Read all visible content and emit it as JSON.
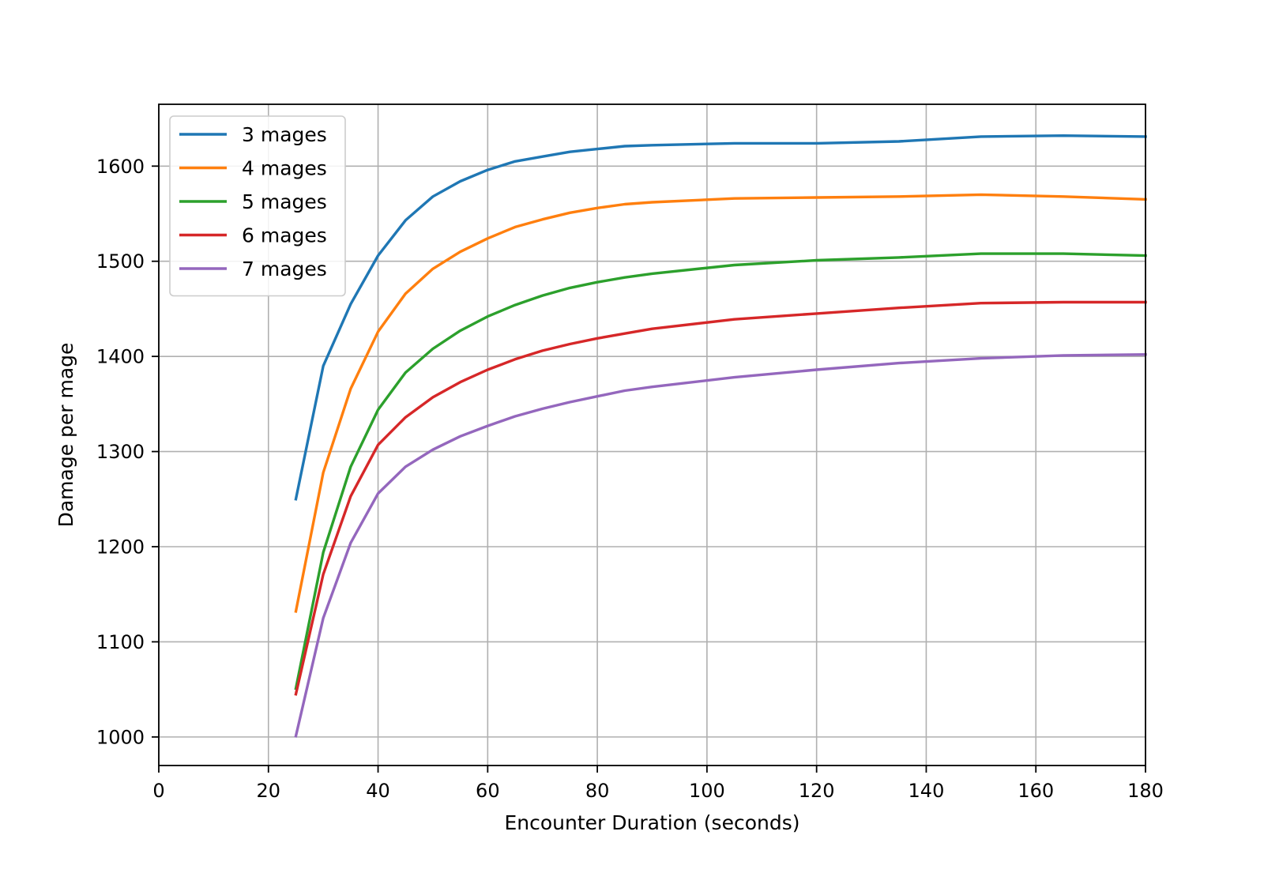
{
  "chart_data": {
    "type": "line",
    "title": "",
    "xlabel": "Encounter Duration (seconds)",
    "ylabel": "Damage per mage",
    "xlim": [
      0,
      180
    ],
    "ylim": [
      970,
      1665
    ],
    "x_ticks": [
      0,
      20,
      40,
      60,
      80,
      100,
      120,
      140,
      160,
      180
    ],
    "y_ticks": [
      1000,
      1100,
      1200,
      1300,
      1400,
      1500,
      1600
    ],
    "grid": true,
    "legend_position": "upper-left",
    "x": [
      25,
      30,
      35,
      40,
      45,
      50,
      55,
      60,
      65,
      70,
      75,
      80,
      85,
      90,
      105,
      120,
      135,
      150,
      165,
      180
    ],
    "series": [
      {
        "name": "3 mages",
        "color": "#1f77b4",
        "values": [
          1250,
          1390,
          1455,
          1506,
          1543,
          1568,
          1584,
          1596,
          1605,
          1610,
          1615,
          1618,
          1621,
          1622,
          1624,
          1624,
          1626,
          1631,
          1632,
          1631
        ]
      },
      {
        "name": "4 mages",
        "color": "#ff7f0e",
        "values": [
          1132,
          1278,
          1366,
          1426,
          1466,
          1492,
          1510,
          1524,
          1536,
          1544,
          1551,
          1556,
          1560,
          1562,
          1566,
          1567,
          1568,
          1570,
          1568,
          1565
        ]
      },
      {
        "name": "5 mages",
        "color": "#2ca02c",
        "values": [
          1051,
          1194,
          1284,
          1344,
          1383,
          1408,
          1427,
          1442,
          1454,
          1464,
          1472,
          1478,
          1483,
          1487,
          1496,
          1501,
          1504,
          1508,
          1508,
          1506
        ]
      },
      {
        "name": "6 mages",
        "color": "#d62728",
        "values": [
          1045,
          1171,
          1253,
          1307,
          1336,
          1357,
          1373,
          1386,
          1397,
          1406,
          1413,
          1419,
          1424,
          1429,
          1439,
          1445,
          1451,
          1456,
          1457,
          1457
        ]
      },
      {
        "name": "7 mages",
        "color": "#9467bd",
        "values": [
          1001,
          1125,
          1204,
          1256,
          1284,
          1302,
          1316,
          1327,
          1337,
          1345,
          1352,
          1358,
          1364,
          1368,
          1378,
          1386,
          1393,
          1398,
          1401,
          1402
        ]
      }
    ]
  }
}
